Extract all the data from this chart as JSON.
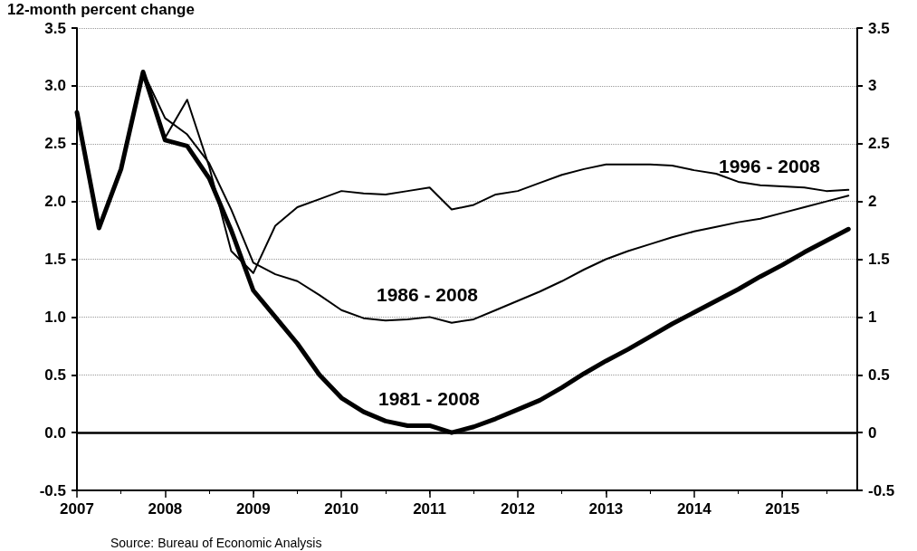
{
  "chart_data": {
    "type": "line",
    "ylabel": "12-month percent change",
    "x": [
      2007,
      2007.25,
      2007.5,
      2007.75,
      2008,
      2008.25,
      2008.5,
      2008.75,
      2009,
      2009.25,
      2009.5,
      2009.75,
      2010,
      2010.25,
      2010.5,
      2010.75,
      2011,
      2011.25,
      2011.5,
      2011.75,
      2012,
      2012.25,
      2012.5,
      2012.75,
      2013,
      2013.25,
      2013.5,
      2013.75,
      2014,
      2014.25,
      2014.5,
      2014.75,
      2015,
      2015.25,
      2015.5,
      2015.75
    ],
    "series": [
      {
        "name": "1981 - 2008",
        "color": "#000000",
        "values": [
          2.77,
          1.77,
          2.28,
          3.12,
          2.53,
          2.48,
          2.2,
          1.75,
          1.23,
          1.0,
          0.77,
          0.5,
          0.3,
          0.18,
          0.1,
          0.06,
          0.06,
          0.0,
          0.05,
          0.12,
          0.2,
          0.28,
          0.39,
          0.51,
          0.62,
          0.72,
          0.83,
          0.94,
          1.04,
          1.14,
          1.24,
          1.35,
          1.45,
          1.56,
          1.66,
          1.76
        ]
      },
      {
        "name": "1986 - 2008",
        "color": "#000000",
        "values": [
          2.77,
          1.77,
          2.28,
          3.12,
          2.72,
          2.58,
          2.33,
          1.93,
          1.47,
          1.37,
          1.31,
          1.19,
          1.06,
          0.99,
          0.97,
          0.98,
          1.0,
          0.95,
          0.98,
          1.06,
          1.14,
          1.22,
          1.31,
          1.41,
          1.5,
          1.57,
          1.63,
          1.69,
          1.74,
          1.78,
          1.82,
          1.85,
          1.9,
          1.95,
          2.0,
          2.05
        ]
      },
      {
        "name": "1996 - 2008",
        "color": "#000000",
        "values": [
          2.77,
          1.77,
          2.28,
          3.12,
          2.55,
          2.88,
          2.3,
          1.57,
          1.38,
          1.79,
          1.95,
          2.02,
          2.09,
          2.07,
          2.06,
          2.09,
          2.12,
          1.93,
          1.97,
          2.06,
          2.09,
          2.16,
          2.23,
          2.28,
          2.32,
          2.32,
          2.32,
          2.31,
          2.27,
          2.24,
          2.17,
          2.14,
          2.13,
          2.12,
          2.09,
          2.1
        ]
      }
    ],
    "xlim": [
      2007,
      2015.85
    ],
    "xticks": [
      2007,
      2008,
      2009,
      2010,
      2011,
      2012,
      2013,
      2014,
      2015
    ],
    "ylim": [
      -0.5,
      3.5
    ],
    "yticks": [
      -0.5,
      {
        "value": 0,
        "label": "0.0"
      },
      0.5,
      {
        "value": 1,
        "label": "1.0"
      },
      1.5,
      {
        "value": 2,
        "label": "2.0"
      },
      2.5,
      {
        "value": 3,
        "label": "3.0"
      },
      3.5
    ],
    "y2lim": [
      -0.5,
      3.5
    ],
    "y2ticks": [
      -0.5,
      0,
      0.5,
      1,
      1.5,
      2,
      2.5,
      3,
      3.5
    ],
    "grid": "y",
    "legend": false,
    "marker": "none",
    "line_style": "solid",
    "ref_lines": [
      {
        "axis": "y",
        "value": 0,
        "color": "#000000"
      }
    ],
    "annotations": [
      "Source: Bureau of Economic Analysis"
    ]
  }
}
